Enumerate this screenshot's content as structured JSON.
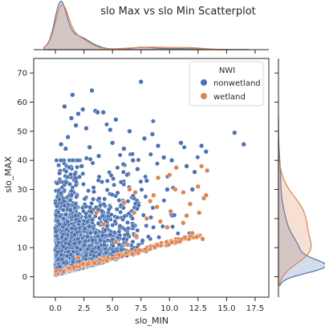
{
  "chart_data": {
    "type": "scatter",
    "title": "slo Max vs slo Min Scatterplot",
    "xlabel": "slo_MIN",
    "ylabel": "slo_MAX",
    "xlim": [
      -1.9,
      18.7
    ],
    "ylim": [
      -7,
      75
    ],
    "xticks": [
      "0.0",
      "2.5",
      "5.0",
      "7.5",
      "10.0",
      "12.5",
      "15.0",
      "17.5"
    ],
    "yticks": [
      "0",
      "10",
      "20",
      "30",
      "40",
      "50",
      "60",
      "70"
    ],
    "legend": {
      "title": "NWI",
      "placement": "top-right"
    },
    "grid": false,
    "marginals": [
      "top-kde",
      "right-kde"
    ],
    "series": [
      {
        "name": "nonwetland",
        "color": "#4c72b0",
        "points": [
          [
            0.8,
            58.5
          ],
          [
            1.5,
            62.5
          ],
          [
            2.0,
            56.0
          ],
          [
            2.4,
            57.5
          ],
          [
            3.2,
            64.0
          ],
          [
            3.5,
            57.0
          ],
          [
            3.7,
            56.5
          ],
          [
            7.5,
            67.0
          ],
          [
            4.2,
            56.5
          ],
          [
            5.3,
            54.0
          ],
          [
            6.5,
            50.0
          ],
          [
            4.8,
            50.5
          ],
          [
            15.7,
            49.5
          ],
          [
            16.5,
            45.5
          ],
          [
            12.8,
            45.0
          ],
          [
            11.0,
            46.0
          ],
          [
            13.2,
            43.0
          ],
          [
            7.8,
            47.5
          ],
          [
            8.5,
            49.0
          ],
          [
            9.5,
            41.0
          ],
          [
            3.8,
            41.5
          ],
          [
            0.9,
            44.0
          ],
          [
            0.5,
            45.5
          ],
          [
            1.1,
            48.0
          ],
          [
            1.8,
            52.0
          ],
          [
            2.7,
            51.0
          ],
          [
            5.0,
            46.0
          ],
          [
            6.0,
            44.0
          ],
          [
            9.0,
            45.0
          ],
          [
            10.2,
            40.0
          ],
          [
            12.2,
            36.0
          ],
          [
            11.5,
            38.0
          ],
          [
            6.8,
            40.0
          ],
          [
            7.2,
            37.0
          ],
          [
            8.0,
            33.0
          ],
          [
            9.8,
            30.0
          ],
          [
            12.0,
            30.0
          ],
          [
            2.3,
            38.0
          ],
          [
            3.0,
            44.5
          ],
          [
            1.4,
            54.5
          ]
        ]
      },
      {
        "name": "wetland",
        "color": "#dd8452",
        "points": [
          [
            10.6,
            37.5
          ],
          [
            12.8,
            38.0
          ],
          [
            13.3,
            36.5
          ],
          [
            10.0,
            35.0
          ],
          [
            9.0,
            34.0
          ],
          [
            11.2,
            29.0
          ],
          [
            12.5,
            31.0
          ],
          [
            11.8,
            25.0
          ],
          [
            12.6,
            22.0
          ],
          [
            13.0,
            27.0
          ],
          [
            8.6,
            28.0
          ],
          [
            6.5,
            30.0
          ],
          [
            7.0,
            29.0
          ],
          [
            6.0,
            25.5
          ],
          [
            8.9,
            24.0
          ],
          [
            10.1,
            22.5
          ],
          [
            9.8,
            17.0
          ],
          [
            11.2,
            18.5
          ],
          [
            12.0,
            15.0
          ],
          [
            8.0,
            20.0
          ],
          [
            5.3,
            12.0
          ],
          [
            7.1,
            14.0
          ],
          [
            9.2,
            19.0
          ],
          [
            11.5,
            21.0
          ],
          [
            13.2,
            28.0
          ],
          [
            10.5,
            30.0
          ],
          [
            4.2,
            18.0
          ],
          [
            3.6,
            22.0
          ],
          [
            2.0,
            6.5
          ],
          [
            6.3,
            11.0
          ],
          [
            1.2,
            3.0
          ],
          [
            0.7,
            1.8
          ],
          [
            2.4,
            4.5
          ],
          [
            8.3,
            26.0
          ],
          [
            6.9,
            22.0
          ],
          [
            12.9,
            13.0
          ]
        ]
      }
    ]
  }
}
